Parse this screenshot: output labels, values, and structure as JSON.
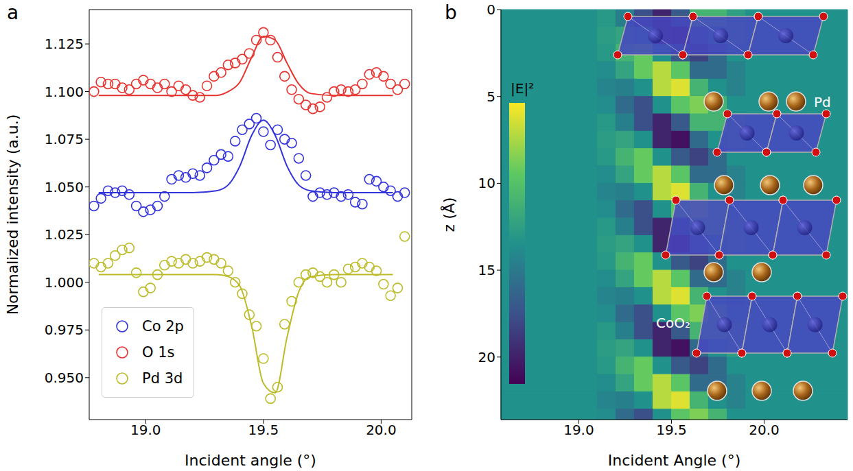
{
  "chart_data": [
    {
      "panel": "a",
      "type": "scatter",
      "x_label": "Incident angle (°)",
      "y_label": "Normalized intensity (a.u.)",
      "xlim": [
        18.76,
        20.13
      ],
      "xticks": [
        {
          "value": 19,
          "label": "19.0"
        },
        19.5,
        {
          "value": 20,
          "label": "20.0"
        }
      ],
      "ylim": [
        0.928,
        1.143
      ],
      "yticks": [
        {
          "value": 0.95,
          "label": "0.950"
        },
        0.975,
        {
          "value": 1.0,
          "label": "1.000"
        },
        1.025,
        {
          "value": 1.05,
          "label": "1.050"
        },
        1.075,
        {
          "value": 1.1,
          "label": "1.100"
        },
        1.125
      ],
      "legend": "lower left",
      "x": [
        18.78,
        18.81,
        18.84,
        18.87,
        18.9,
        18.93,
        18.96,
        18.99,
        19.02,
        19.05,
        19.08,
        19.11,
        19.14,
        19.17,
        19.2,
        19.23,
        19.26,
        19.29,
        19.32,
        19.35,
        19.38,
        19.41,
        19.44,
        19.47,
        19.5,
        19.53,
        19.56,
        19.59,
        19.62,
        19.65,
        19.68,
        19.71,
        19.74,
        19.77,
        19.8,
        19.83,
        19.86,
        19.89,
        19.92,
        19.95,
        19.98,
        20.01,
        20.04,
        20.07,
        20.1
      ],
      "fit_x": [
        18.8,
        19.0,
        19.2,
        19.3,
        19.35,
        19.4,
        19.45,
        19.5,
        19.55,
        19.6,
        19.65,
        19.7,
        19.8,
        20.0,
        20.05
      ],
      "series": [
        {
          "name": "Co 2p",
          "color": "#3333dd",
          "marker": "open_circle",
          "values": [
            1.04,
            1.044,
            1.048,
            1.047,
            1.048,
            1.046,
            1.04,
            1.037,
            1.038,
            1.04,
            1.045,
            1.054,
            1.056,
            1.055,
            1.057,
            1.056,
            1.06,
            1.064,
            1.067,
            1.066,
            1.074,
            1.08,
            1.083,
            1.086,
            1.079,
            1.072,
            1.08,
            1.075,
            1.073,
            1.065,
            1.056,
            1.045,
            1.047,
            1.046,
            1.047,
            1.045,
            1.046,
            1.042,
            1.041,
            1.054,
            1.053,
            1.05,
            1.048,
            1.045,
            1.047
          ],
          "fit": [
            1.047,
            1.047,
            1.047,
            1.048,
            1.051,
            1.061,
            1.077,
            1.085,
            1.077,
            1.061,
            1.051,
            1.048,
            1.047,
            1.047,
            1.047
          ]
        },
        {
          "name": "O 1s",
          "color": "#e8322e",
          "marker": "open_circle",
          "values": [
            1.1,
            1.105,
            1.104,
            1.104,
            1.102,
            1.101,
            1.104,
            1.106,
            1.104,
            1.102,
            1.104,
            1.1,
            1.103,
            1.101,
            1.098,
            1.097,
            1.103,
            1.108,
            1.11,
            1.114,
            1.115,
            1.117,
            1.12,
            1.127,
            1.131,
            1.127,
            1.118,
            1.108,
            1.101,
            1.096,
            1.093,
            1.091,
            1.092,
            1.097,
            1.1,
            1.101,
            1.1,
            1.101,
            1.104,
            1.109,
            1.11,
            1.108,
            1.104,
            1.101,
            1.104
          ],
          "fit": [
            1.098,
            1.098,
            1.098,
            1.098,
            1.1,
            1.105,
            1.118,
            1.129,
            1.127,
            1.115,
            1.104,
            1.099,
            1.098,
            1.098,
            1.098
          ]
        },
        {
          "name": "Pd 3d",
          "color": "#bcbc2a",
          "marker": "open_circle",
          "values": [
            1.01,
            1.008,
            1.01,
            1.014,
            1.017,
            1.018,
            1.005,
            0.995,
            0.997,
            1.004,
            1.009,
            1.011,
            1.01,
            1.012,
            1.01,
            1.011,
            1.013,
            1.012,
            1.01,
            1.006,
            1.0,
            0.994,
            0.983,
            0.977,
            0.96,
            0.939,
            0.945,
            0.978,
            0.99,
            1.0,
            1.004,
            1.005,
            1.003,
            1.0,
            1.004,
            1.0,
            1.007,
            1.008,
            1.01,
            1.008,
            1.006,
            0.999,
            0.993,
            0.997,
            1.024
          ],
          "fit": [
            1.004,
            1.004,
            1.004,
            1.004,
            1.003,
            0.998,
            0.977,
            0.947,
            0.942,
            0.971,
            0.995,
            1.003,
            1.004,
            1.004,
            1.004
          ]
        }
      ]
    },
    {
      "panel": "b",
      "type": "heatmap",
      "x_label": "Incident Angle (°)",
      "y_label": "z (Å)",
      "xlim": [
        18.58,
        20.45
      ],
      "xticks": [
        {
          "value": 19,
          "label": "19.0"
        },
        19.5,
        {
          "value": 20,
          "label": "20.0"
        }
      ],
      "ylim": [
        0,
        23.6
      ],
      "yticks": [
        0,
        5,
        10,
        15,
        20
      ],
      "x_edges": [
        18.58,
        19.1,
        19.2,
        19.3,
        19.4,
        19.5,
        19.6,
        19.7,
        19.8,
        19.9,
        20.45
      ],
      "z_edges": [
        0,
        1,
        2,
        3,
        4,
        5,
        6,
        7,
        8,
        9,
        10,
        11,
        12,
        13,
        14,
        15,
        16,
        17,
        18,
        19,
        20,
        21,
        22,
        23,
        23.6
      ],
      "cells": [
        [
          0.5,
          0.53,
          0.43,
          0.24,
          0.11,
          0.28,
          0.65,
          0.65,
          0.56,
          0.5
        ],
        [
          0.5,
          0.55,
          0.58,
          0.5,
          0.11,
          0.05,
          0.35,
          0.5,
          0.56,
          0.5
        ],
        [
          0.5,
          0.53,
          0.65,
          0.76,
          0.5,
          0.28,
          0.2,
          0.35,
          0.5,
          0.5
        ],
        [
          0.5,
          0.48,
          0.58,
          0.76,
          0.89,
          0.73,
          0.35,
          0.35,
          0.44,
          0.5
        ],
        [
          0.5,
          0.45,
          0.43,
          0.5,
          0.89,
          0.95,
          0.65,
          0.5,
          0.44,
          0.5
        ],
        [
          0.5,
          0.48,
          0.35,
          0.24,
          0.5,
          0.73,
          0.8,
          0.65,
          0.5,
          0.5
        ],
        [
          0.5,
          0.53,
          0.43,
          0.24,
          0.11,
          0.28,
          0.65,
          0.65,
          0.56,
          0.5
        ],
        [
          0.5,
          0.55,
          0.58,
          0.5,
          0.11,
          0.05,
          0.35,
          0.5,
          0.56,
          0.5
        ],
        [
          0.5,
          0.53,
          0.65,
          0.76,
          0.5,
          0.28,
          0.2,
          0.35,
          0.5,
          0.5
        ],
        [
          0.5,
          0.48,
          0.58,
          0.76,
          0.89,
          0.73,
          0.35,
          0.35,
          0.44,
          0.5
        ],
        [
          0.5,
          0.45,
          0.43,
          0.5,
          0.89,
          0.95,
          0.65,
          0.5,
          0.44,
          0.5
        ],
        [
          0.5,
          0.48,
          0.35,
          0.24,
          0.5,
          0.73,
          0.8,
          0.65,
          0.5,
          0.5
        ],
        [
          0.5,
          0.53,
          0.43,
          0.24,
          0.11,
          0.28,
          0.65,
          0.65,
          0.56,
          0.5
        ],
        [
          0.5,
          0.55,
          0.58,
          0.5,
          0.11,
          0.05,
          0.35,
          0.5,
          0.56,
          0.5
        ],
        [
          0.5,
          0.53,
          0.65,
          0.76,
          0.5,
          0.28,
          0.2,
          0.35,
          0.5,
          0.5
        ],
        [
          0.5,
          0.48,
          0.58,
          0.76,
          0.89,
          0.73,
          0.35,
          0.35,
          0.44,
          0.5
        ],
        [
          0.5,
          0.45,
          0.43,
          0.5,
          0.89,
          0.95,
          0.65,
          0.5,
          0.44,
          0.5
        ],
        [
          0.5,
          0.48,
          0.35,
          0.24,
          0.5,
          0.73,
          0.8,
          0.65,
          0.5,
          0.5
        ],
        [
          0.5,
          0.53,
          0.43,
          0.24,
          0.11,
          0.28,
          0.65,
          0.65,
          0.56,
          0.5
        ],
        [
          0.5,
          0.55,
          0.58,
          0.5,
          0.11,
          0.05,
          0.35,
          0.5,
          0.56,
          0.5
        ],
        [
          0.5,
          0.53,
          0.65,
          0.76,
          0.5,
          0.28,
          0.2,
          0.35,
          0.5,
          0.5
        ],
        [
          0.5,
          0.48,
          0.58,
          0.76,
          0.89,
          0.73,
          0.35,
          0.35,
          0.44,
          0.5
        ],
        [
          0.5,
          0.45,
          0.43,
          0.5,
          0.89,
          0.95,
          0.65,
          0.5,
          0.44,
          0.5
        ],
        [
          0.5,
          0.48,
          0.35,
          0.24,
          0.5,
          0.73,
          0.8,
          0.65,
          0.5,
          0.5
        ]
      ],
      "colorbar": {
        "label": "|E|²",
        "range": [
          0,
          1
        ]
      },
      "annotations": [
        "Pd",
        "CoO₂"
      ]
    }
  ]
}
